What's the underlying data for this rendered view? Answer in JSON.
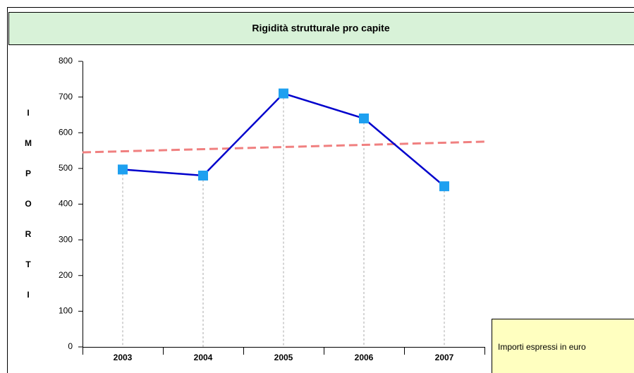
{
  "chart_data": {
    "type": "line",
    "title": "Rigidità strutturale pro capite",
    "y_label": [
      "I",
      "M",
      "P",
      "O",
      "R",
      "T",
      "I"
    ],
    "categories": [
      "2003",
      "2004",
      "2005",
      "2006",
      "2007"
    ],
    "values": [
      497,
      480,
      710,
      640,
      450
    ],
    "color": "#0000cc",
    "marker_color": "#1ea0f0",
    "trendline": {
      "color": "#f08080",
      "values": [
        545,
        575
      ]
    },
    "ylim": [
      0,
      800
    ],
    "yticks": [
      0,
      100,
      200,
      300,
      400,
      500,
      600,
      700,
      800
    ],
    "drop_lines": true,
    "annotation": "Importi espressi in euro"
  }
}
